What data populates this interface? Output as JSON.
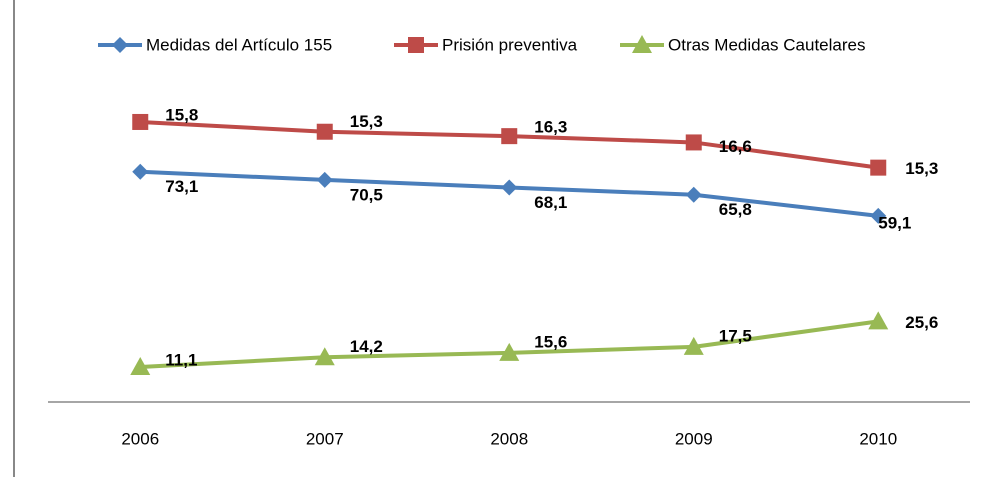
{
  "chart_data": {
    "type": "line",
    "categories": [
      "2006",
      "2007",
      "2008",
      "2009",
      "2010"
    ],
    "series": [
      {
        "name": "Medidas del Artículo 155",
        "color": "#4a7ebb",
        "marker": "diamond",
        "values": [
          73.1,
          70.5,
          68.1,
          65.8,
          59.1
        ],
        "value_labels": [
          "73,1",
          "70,5",
          "68,1",
          "65,8",
          "59,1"
        ]
      },
      {
        "name": "Prisión preventiva",
        "color": "#be4b48",
        "marker": "square",
        "stacked_with": 0,
        "values": [
          15.8,
          15.3,
          16.3,
          16.6,
          15.3
        ],
        "value_labels": [
          "15,8",
          "15,3",
          "16,3",
          "16,6",
          "15,3"
        ]
      },
      {
        "name": "Otras Medidas Cautelares",
        "color": "#98b954",
        "marker": "triangle",
        "values": [
          11.1,
          14.2,
          15.6,
          17.5,
          25.6
        ],
        "value_labels": [
          "11,1",
          "14,2",
          "15,6",
          "17,5",
          "25,6"
        ]
      }
    ],
    "ylim": [
      0,
      100
    ],
    "legend": "top"
  }
}
